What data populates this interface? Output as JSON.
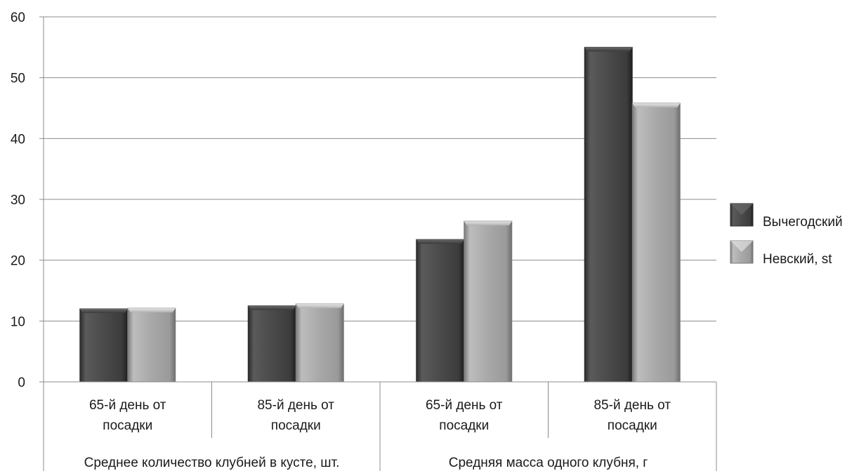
{
  "chart_data": {
    "type": "bar",
    "title": "",
    "xlabel": "",
    "ylabel": "",
    "ylim": [
      0,
      60
    ],
    "yticks": [
      0,
      10,
      20,
      30,
      40,
      50,
      60
    ],
    "grid": true,
    "legend_position": "right",
    "categories": [
      {
        "label_line1": "65-й день от",
        "label_line2": "посадки",
        "group": 0
      },
      {
        "label_line1": "85-й  день от",
        "label_line2": "посадки",
        "group": 0
      },
      {
        "label_line1": "65-й день от",
        "label_line2": "посадки",
        "group": 1
      },
      {
        "label_line1": "85-й  день от",
        "label_line2": "посадки",
        "group": 1
      }
    ],
    "groups": [
      {
        "label": "Среднее количество клубней в кусте, шт."
      },
      {
        "label": "Средняя масса одного клубня, г"
      }
    ],
    "series": [
      {
        "name": "Вычегодский",
        "values": [
          12.0,
          12.5,
          23.4,
          55.0
        ],
        "color": "#4a4a4a"
      },
      {
        "name": "Невский, st",
        "values": [
          12.1,
          12.8,
          26.4,
          45.8
        ],
        "color": "#a6a6a6"
      }
    ]
  }
}
